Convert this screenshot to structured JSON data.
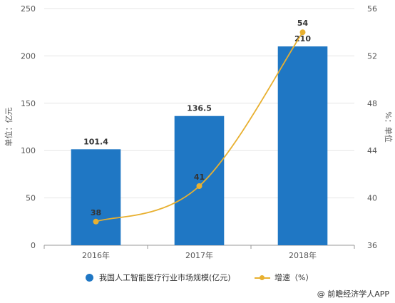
{
  "chart_data": {
    "type": "bar",
    "categories": [
      "2016年",
      "2017年",
      "2018年"
    ],
    "series": [
      {
        "name": "我国人工智能医疗行业市场规模(亿元)",
        "type": "bar",
        "axis": "left",
        "values": [
          101.4,
          136.5,
          210
        ],
        "labels": [
          "101.4",
          "136.5",
          "210"
        ],
        "color": "#1f77c4"
      },
      {
        "name": "增速（%）",
        "type": "line",
        "axis": "right",
        "values": [
          38,
          41,
          54
        ],
        "labels": [
          "38",
          "41",
          "54"
        ],
        "color": "#e8b030"
      }
    ],
    "ylabel": "单位：亿元",
    "y2label": "%：单位",
    "ylim": [
      0,
      250
    ],
    "yticks": [
      "0",
      "50",
      "100",
      "150",
      "200",
      "250"
    ],
    "y2lim": [
      36,
      56
    ],
    "y2ticks": [
      "36",
      "40",
      "44",
      "48",
      "52",
      "56"
    ],
    "grid": true,
    "legend": "bottom"
  },
  "source": "@ 前瞻经济学人APP"
}
